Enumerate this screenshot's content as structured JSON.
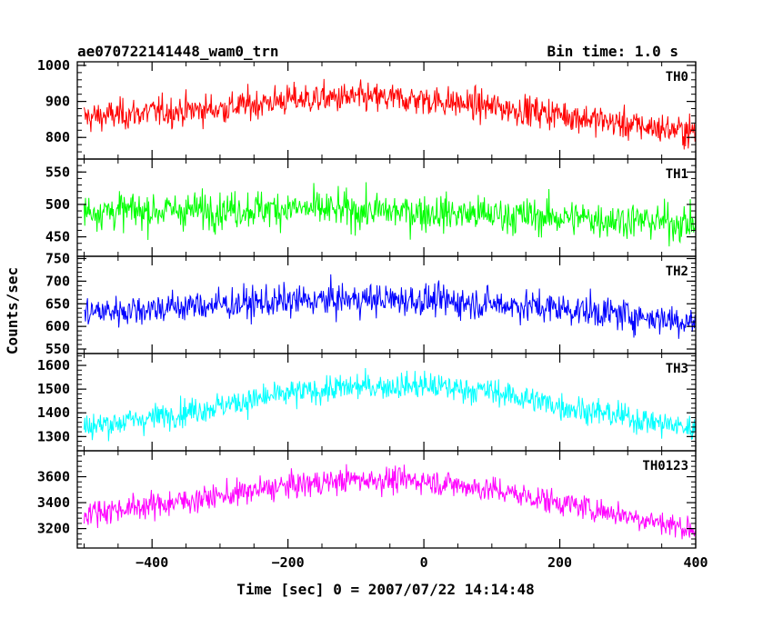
{
  "chart_data": {
    "type": "line",
    "title": "ae070722141448_wam0_trn",
    "subtitle": "Bin time: 1.0 s",
    "xlabel": "Time [sec] 0 = 2007/07/22 14:14:48",
    "ylabel": "Counts/sec",
    "x_range": [
      -510,
      400
    ],
    "x_ticks": [
      -400,
      -200,
      0,
      200,
      400
    ],
    "bin_time_s": 1.0,
    "grid": false,
    "legend": "none",
    "panels": [
      {
        "name": "TH0",
        "color": "#ff0000",
        "ylim": [
          740,
          1010
        ],
        "yticks": [
          800,
          900,
          1000
        ],
        "profile_x": [
          -500,
          -400,
          -300,
          -200,
          -100,
          0,
          100,
          200,
          300,
          400
        ],
        "profile_y": [
          855,
          870,
          880,
          905,
          910,
          905,
          885,
          865,
          835,
          815
        ],
        "noise_sigma": 30
      },
      {
        "name": "TH1",
        "color": "#00ff00",
        "ylim": [
          420,
          570
        ],
        "yticks": [
          450,
          500,
          550
        ],
        "profile_x": [
          -500,
          -400,
          -300,
          -200,
          -100,
          0,
          100,
          200,
          300,
          400
        ],
        "profile_y": [
          490,
          490,
          492,
          494,
          490,
          488,
          484,
          480,
          476,
          470
        ],
        "noise_sigma": 20
      },
      {
        "name": "TH2",
        "color": "#0000ff",
        "ylim": [
          540,
          755
        ],
        "yticks": [
          550,
          600,
          650,
          700,
          750
        ],
        "profile_x": [
          -500,
          -400,
          -300,
          -200,
          -100,
          0,
          100,
          200,
          300,
          400
        ],
        "profile_y": [
          630,
          640,
          648,
          655,
          660,
          658,
          650,
          640,
          625,
          610
        ],
        "noise_sigma": 25
      },
      {
        "name": "TH3",
        "color": "#00ffff",
        "ylim": [
          1240,
          1650
        ],
        "yticks": [
          1300,
          1400,
          1500,
          1600
        ],
        "profile_x": [
          -500,
          -400,
          -300,
          -200,
          -100,
          0,
          100,
          200,
          300,
          400
        ],
        "profile_y": [
          1340,
          1380,
          1430,
          1480,
          1510,
          1515,
          1490,
          1430,
          1380,
          1330
        ],
        "noise_sigma": 40
      },
      {
        "name": "TH0123",
        "color": "#ff00ff",
        "ylim": [
          3050,
          3800
        ],
        "yticks": [
          3200,
          3400,
          3600
        ],
        "profile_x": [
          -500,
          -400,
          -300,
          -200,
          -100,
          0,
          100,
          200,
          300,
          400
        ],
        "profile_y": [
          3320,
          3380,
          3450,
          3530,
          3580,
          3570,
          3500,
          3400,
          3300,
          3190
        ],
        "noise_sigma": 70
      }
    ]
  }
}
